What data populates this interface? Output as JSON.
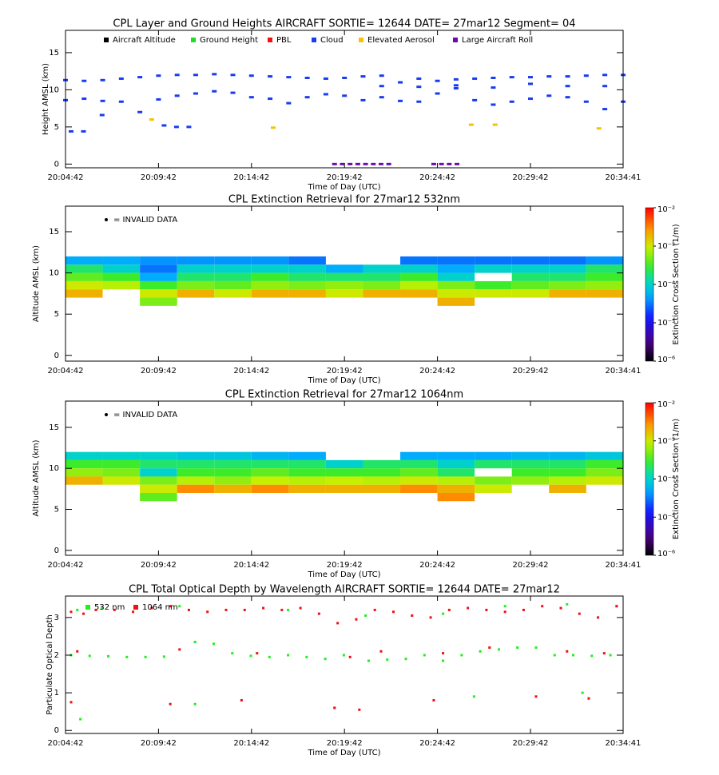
{
  "chart_data": [
    {
      "type": "scatter",
      "title": "CPL Layer and Ground Heights AIRCRAFT SORTIE= 12644 DATE= 27mar12 Segment= 04",
      "xlabel": "Time of Day (UTC)",
      "ylabel": "Height AMSL (km)",
      "xlim": [
        72282,
        74081
      ],
      "ylim": [
        -0.5,
        18
      ],
      "xticks": [
        {
          "value": 72282,
          "label": "20:04:42"
        },
        {
          "value": 72582,
          "label": "20:09:42"
        },
        {
          "value": 72882,
          "label": "20:14:42"
        },
        {
          "value": 73182,
          "label": "20:19:42"
        },
        {
          "value": 73482,
          "label": "20:24:42"
        },
        {
          "value": 73782,
          "label": "20:29:42"
        },
        {
          "value": 74081,
          "label": "20:34:41"
        }
      ],
      "yticks": [
        0,
        5,
        10,
        15
      ],
      "series": [
        {
          "name": "Aircraft Altitude",
          "color": "#000000",
          "x": [],
          "values": []
        },
        {
          "name": "Ground Height",
          "color": "#22dd22",
          "x": [],
          "values": []
        },
        {
          "name": "PBL",
          "color": "#ee1111",
          "x": [],
          "values": []
        },
        {
          "name": "Cloud",
          "color": "#1a3cf0",
          "x": [
            72282,
            72342,
            72402,
            72462,
            72522,
            72582,
            72642,
            72702,
            72762,
            72822,
            72882,
            72942,
            73002,
            73062,
            73122,
            73182,
            73242,
            73302,
            73362,
            73422,
            73482,
            73542,
            73602,
            73662,
            73722,
            73782,
            73842,
            73902,
            73962,
            74022,
            74081,
            72282,
            72342,
            72402,
            72462,
            72522,
            72582,
            72642,
            72702,
            72762,
            72822,
            72882,
            72942,
            73002,
            73062,
            73122,
            73182,
            73242,
            73302,
            73362,
            73422,
            73482,
            73542,
            73602,
            73662,
            73722,
            73782,
            73842,
            73902,
            73962,
            74022,
            74081,
            73302,
            73422,
            73542,
            73662,
            73782,
            73902,
            74022,
            72300,
            72340,
            72600,
            72640,
            72680,
            72400
          ],
          "values": [
            11.3,
            11.2,
            11.3,
            11.5,
            11.7,
            11.9,
            12.0,
            12.0,
            12.1,
            12.0,
            11.9,
            11.8,
            11.7,
            11.6,
            11.5,
            11.6,
            11.8,
            11.9,
            11.0,
            11.5,
            11.2,
            11.4,
            11.5,
            11.6,
            11.7,
            11.7,
            11.8,
            11.8,
            11.9,
            12.0,
            12.0,
            8.6,
            8.8,
            8.5,
            8.4,
            7.0,
            8.7,
            9.2,
            9.5,
            9.8,
            9.6,
            9.0,
            8.8,
            8.2,
            9.0,
            9.4,
            9.2,
            8.6,
            9.0,
            8.5,
            8.4,
            9.5,
            10.2,
            8.6,
            8.0,
            8.4,
            8.8,
            9.2,
            9.0,
            8.4,
            7.4,
            8.4,
            10.5,
            10.4,
            10.6,
            10.3,
            10.8,
            10.5,
            10.5,
            4.4,
            4.4,
            5.2,
            5.0,
            5.0,
            6.6
          ]
        },
        {
          "name": "Elevated Aerosol",
          "color": "#f5c400",
          "x": [
            72560,
            72952,
            73591,
            73668,
            74003
          ],
          "values": [
            6.0,
            4.9,
            5.3,
            5.3,
            4.8
          ]
        },
        {
          "name": "Large Aircraft Roll",
          "color": "#6a0dad",
          "x": [
            73150,
            73175,
            73200,
            73225,
            73250,
            73275,
            73300,
            73325,
            73470,
            73495,
            73520,
            73545
          ],
          "values": [
            0,
            0,
            0,
            0,
            0,
            0,
            0,
            0,
            0,
            0,
            0,
            0
          ]
        }
      ]
    },
    {
      "type": "heatmap",
      "title": "CPL Extinction Retrieval for 27mar12      532nm",
      "xlabel": "Time of Day (UTC)",
      "ylabel": "Altitude AMSL (km)",
      "annotation": "= INVALID DATA",
      "xlim": [
        72282,
        74081
      ],
      "ylim": [
        -0.7,
        18.1
      ],
      "xticks": [
        {
          "value": 72282,
          "label": "20:04:42"
        },
        {
          "value": 72582,
          "label": "20:09:42"
        },
        {
          "value": 72882,
          "label": "20:14:42"
        },
        {
          "value": 73182,
          "label": "20:19:42"
        },
        {
          "value": 73482,
          "label": "20:24:42"
        },
        {
          "value": 73782,
          "label": "20:29:42"
        },
        {
          "value": 74081,
          "label": "20:34:41"
        }
      ],
      "yticks": [
        0,
        5,
        10,
        15
      ],
      "x": [
        72342,
        72462,
        72582,
        72702,
        72822,
        72942,
        73062,
        73182,
        73302,
        73422,
        73542,
        73662,
        73782,
        73902,
        74022
      ],
      "y": [
        11.5,
        10.5,
        9.5,
        8.5,
        7.5,
        6.5
      ],
      "z": [
        [
          5e-05,
          5e-05,
          4e-05,
          4e-05,
          4e-05,
          4e-05,
          3e-05,
          null,
          null,
          3e-05,
          3e-05,
          3e-05,
          3e-05,
          3e-05,
          4e-05
        ],
        [
          0.0002,
          0.0001,
          3e-05,
          0.0001,
          0.0001,
          0.0001,
          0.0001,
          5e-05,
          0.0001,
          0.0001,
          5e-05,
          0.0001,
          0.0001,
          0.0001,
          0.0002
        ],
        [
          0.0004,
          0.0003,
          5e-05,
          0.0002,
          0.0002,
          0.0003,
          0.0002,
          0.0002,
          0.0002,
          0.0003,
          0.0001,
          null,
          0.0002,
          0.0002,
          0.0003
        ],
        [
          0.001,
          0.0008,
          0.0003,
          0.0005,
          0.0004,
          0.0006,
          0.0005,
          0.0006,
          0.0005,
          0.0008,
          0.0005,
          0.0003,
          0.0004,
          0.0005,
          0.0006
        ],
        [
          0.002,
          null,
          0.001,
          0.002,
          0.001,
          0.002,
          0.002,
          0.001,
          0.002,
          0.002,
          0.001,
          0.001,
          0.001,
          0.002,
          0.002
        ],
        [
          null,
          null,
          0.0005,
          null,
          null,
          null,
          null,
          null,
          null,
          null,
          0.002,
          null,
          null,
          null,
          null
        ]
      ],
      "colorbar": {
        "label": "Extinction Cross Section (1/m)",
        "log": true,
        "lim": [
          1e-06,
          0.01
        ],
        "ticks": [
          {
            "value": 0.01,
            "label": "10⁻²"
          },
          {
            "value": 0.001,
            "label": "10⁻³"
          },
          {
            "value": 0.0001,
            "label": "10⁻⁴"
          },
          {
            "value": 1e-05,
            "label": "10⁻⁵"
          },
          {
            "value": 1e-06,
            "label": "10⁻⁶"
          }
        ]
      }
    },
    {
      "type": "heatmap",
      "title": "CPL Extinction Retrieval for 27mar12     1064nm",
      "xlabel": "Time of Day (UTC)",
      "ylabel": "Altitude AMSL (km)",
      "annotation": "= INVALID DATA",
      "xlim": [
        72282,
        74081
      ],
      "ylim": [
        -0.6,
        18.2
      ],
      "xticks": [
        {
          "value": 72282,
          "label": "20:04:42"
        },
        {
          "value": 72582,
          "label": "20:09:42"
        },
        {
          "value": 72882,
          "label": "20:14:42"
        },
        {
          "value": 73182,
          "label": "20:19:42"
        },
        {
          "value": 73482,
          "label": "20:24:42"
        },
        {
          "value": 73782,
          "label": "20:29:42"
        },
        {
          "value": 74081,
          "label": "20:34:41"
        }
      ],
      "yticks": [
        0,
        5,
        10,
        15
      ],
      "x": [
        72342,
        72462,
        72582,
        72702,
        72822,
        72942,
        73062,
        73182,
        73302,
        73422,
        73542,
        73662,
        73782,
        73902,
        74022
      ],
      "y": [
        11.5,
        10.5,
        9.5,
        8.5,
        7.5,
        6.5
      ],
      "z": [
        [
          0.0001,
          0.0001,
          0.0001,
          8e-05,
          8e-05,
          6e-05,
          5e-05,
          null,
          null,
          5e-05,
          5e-05,
          5e-05,
          6e-05,
          6e-05,
          8e-05
        ],
        [
          0.0003,
          0.0003,
          0.0002,
          0.0002,
          0.0002,
          0.0002,
          0.0002,
          0.0001,
          0.0002,
          0.0002,
          0.0001,
          0.0002,
          0.0002,
          0.0002,
          0.0003
        ],
        [
          0.0006,
          0.0005,
          0.0001,
          0.0003,
          0.0003,
          0.0004,
          0.0003,
          0.0003,
          0.0003,
          0.0004,
          0.0002,
          null,
          0.0003,
          0.0003,
          0.0005
        ],
        [
          0.002,
          0.001,
          0.0005,
          0.0008,
          0.0006,
          0.0009,
          0.0008,
          0.0009,
          0.0008,
          0.001,
          0.0008,
          0.0005,
          0.0006,
          0.0008,
          0.001
        ],
        [
          null,
          null,
          0.001,
          0.003,
          0.002,
          0.003,
          0.002,
          0.002,
          0.002,
          0.003,
          0.002,
          0.001,
          null,
          0.002,
          null
        ],
        [
          null,
          null,
          0.0004,
          null,
          null,
          null,
          null,
          null,
          null,
          null,
          0.003,
          null,
          null,
          null,
          null
        ]
      ],
      "colorbar": {
        "label": "Extinction Cross Section (1/m)",
        "log": true,
        "lim": [
          1e-06,
          0.01
        ],
        "ticks": [
          {
            "value": 0.01,
            "label": "10⁻²"
          },
          {
            "value": 0.001,
            "label": "10⁻³"
          },
          {
            "value": 0.0001,
            "label": "10⁻⁴"
          },
          {
            "value": 1e-05,
            "label": "10⁻⁵"
          },
          {
            "value": 1e-06,
            "label": "10⁻⁶"
          }
        ]
      }
    },
    {
      "type": "scatter",
      "title": "CPL Total Optical Depth by Wavelength AIRCRAFT SORTIE= 12644 DATE= 27mar12",
      "xlabel": "Time of Day (UTC)",
      "ylabel": "Particulate Optical Depth",
      "xlim": [
        72282,
        74081
      ],
      "ylim": [
        -0.08,
        3.57
      ],
      "xticks": [
        {
          "value": 72282,
          "label": "20:04:42"
        },
        {
          "value": 72582,
          "label": "20:09:42"
        },
        {
          "value": 72882,
          "label": "20:14:42"
        },
        {
          "value": 73182,
          "label": "20:19:42"
        },
        {
          "value": 73482,
          "label": "20:24:42"
        },
        {
          "value": 73782,
          "label": "20:29:42"
        },
        {
          "value": 74081,
          "label": "20:34:41"
        }
      ],
      "yticks": [
        0,
        1,
        2,
        3
      ],
      "series": [
        {
          "name": "532 nm",
          "color": "#22ee22",
          "x": [
            72300,
            72360,
            72420,
            72480,
            72540,
            72600,
            72700,
            72760,
            72820,
            72880,
            72940,
            73000,
            73060,
            73120,
            73180,
            73260,
            73320,
            73380,
            73440,
            73500,
            73560,
            73620,
            73680,
            73740,
            73800,
            73860,
            73920,
            73980,
            74040,
            72320,
            72400,
            72650,
            73000,
            73250,
            73500,
            73700,
            73900,
            74060,
            72330,
            72700,
            73150,
            73600,
            73950
          ],
          "values": [
            2.0,
            1.98,
            1.97,
            1.95,
            1.95,
            1.96,
            2.35,
            2.3,
            2.05,
            1.98,
            1.95,
            2.0,
            1.95,
            1.9,
            2.0,
            1.85,
            1.88,
            1.9,
            2.0,
            1.85,
            2.0,
            2.1,
            2.15,
            2.2,
            2.2,
            2.0,
            2.0,
            1.98,
            2.0,
            3.2,
            3.25,
            3.3,
            3.2,
            3.05,
            3.1,
            3.3,
            3.35,
            3.3,
            0.3,
            0.7,
            0.6,
            0.9,
            1.0
          ]
        },
        {
          "name": "1064 nm",
          "color": "#ee1111",
          "x": [
            72300,
            72340,
            72380,
            72440,
            72500,
            72560,
            72620,
            72680,
            72740,
            72800,
            72860,
            72920,
            72980,
            73040,
            73100,
            73160,
            73220,
            73280,
            73340,
            73400,
            73460,
            73520,
            73580,
            73640,
            73700,
            73760,
            73820,
            73880,
            73940,
            74000,
            74060,
            72320,
            72650,
            72900,
            73200,
            73300,
            73500,
            73650,
            73900,
            74020,
            72300,
            72620,
            72850,
            73150,
            73230,
            73470,
            73800,
            73970
          ],
          "values": [
            3.15,
            3.1,
            3.2,
            3.2,
            3.15,
            3.25,
            3.3,
            3.2,
            3.15,
            3.2,
            3.2,
            3.25,
            3.2,
            3.25,
            3.1,
            2.85,
            2.95,
            3.2,
            3.15,
            3.05,
            3.0,
            3.2,
            3.25,
            3.2,
            3.15,
            3.2,
            3.3,
            3.25,
            3.1,
            3.0,
            3.3,
            2.1,
            2.15,
            2.05,
            1.95,
            2.1,
            2.05,
            2.2,
            2.1,
            2.05,
            0.75,
            0.7,
            0.8,
            0.6,
            0.55,
            0.8,
            0.9,
            0.85
          ]
        }
      ]
    }
  ]
}
